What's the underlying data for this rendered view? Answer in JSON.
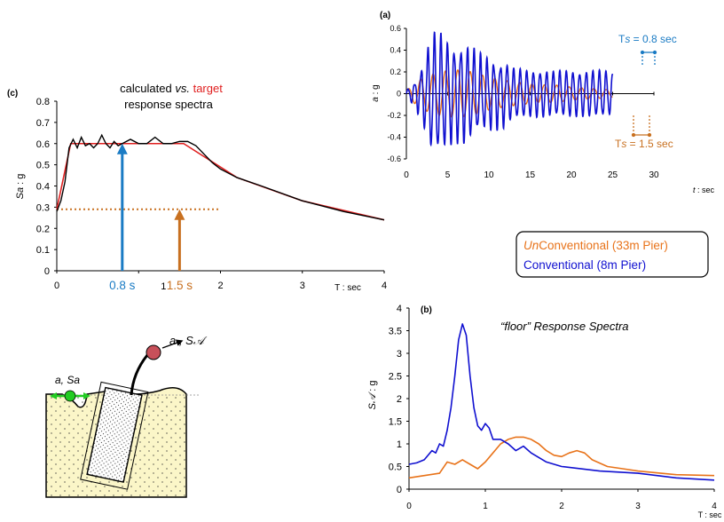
{
  "colors": {
    "conventional": "#1010d0",
    "unconventional": "#e8731a",
    "target": "#e02020",
    "calculated": "#000000",
    "arrow_08": "#1a7bc4",
    "arrow_15": "#c87020",
    "soil": "#fbf6c8",
    "mass": "#c8505a",
    "ball": "#22cc22"
  },
  "legend": {
    "unconventional_prefix": "Un",
    "unconventional_rest": "Conventional (33m Pier)",
    "conventional": "Conventional (8m Pier)"
  },
  "sketch": {
    "top_label_a": "a",
    "top_label_sa": ", S",
    "top_label_script": "ᵉ",
    "ground_label": "a, Sa",
    "top_label_full": "S𝒜"
  },
  "chart_data": [
    {
      "id": "a",
      "type": "line",
      "panel_label": "(a)",
      "xlabel_var": "t",
      "xlabel_unit": ": sec",
      "ylabel_var": "a",
      "ylabel_unit": ": g",
      "xlim": [
        0,
        30
      ],
      "ylim": [
        -0.6,
        0.6
      ],
      "xticks": [
        "0",
        "5",
        "10",
        "15",
        "20",
        "25",
        "30"
      ],
      "yticks": [
        "-0.6",
        "-0.4",
        "-0.2",
        "0",
        "0.2",
        "0.4",
        "0.6"
      ],
      "annotations": {
        "ts08_prefix": "T",
        "ts08_var": "s",
        "ts08_rest": " = 0.8 sec",
        "ts15_prefix": "T",
        "ts15_var": "s",
        "ts15_rest": " = 1.5 sec"
      },
      "series": [
        {
          "key": "conventional",
          "period": 0.8,
          "envelope_t": [
            0,
            1,
            2,
            3,
            4,
            5,
            6,
            7,
            8,
            9,
            10,
            11,
            12,
            13,
            14,
            15,
            16,
            17,
            18,
            19,
            20,
            21,
            22,
            23,
            24,
            25
          ],
          "envelope_a": [
            0.03,
            0.1,
            0.25,
            0.5,
            0.52,
            0.45,
            0.4,
            0.42,
            0.38,
            0.32,
            0.3,
            0.28,
            0.27,
            0.22,
            0.21,
            0.2,
            0.2,
            0.2,
            0.19,
            0.2,
            0.2,
            0.19,
            0.2,
            0.2,
            0.2,
            0.18
          ]
        },
        {
          "key": "unconventional",
          "period": 1.5,
          "envelope_t": [
            0,
            2,
            4,
            6,
            8,
            10,
            12,
            14,
            16,
            18,
            20,
            22,
            24,
            25
          ],
          "envelope_a": [
            0.03,
            0.15,
            0.2,
            0.22,
            0.2,
            0.15,
            0.12,
            0.1,
            0.08,
            0.08,
            0.06,
            0.05,
            0.04,
            0.03
          ]
        }
      ]
    },
    {
      "id": "c",
      "type": "line",
      "panel_label": "(c)",
      "title_a": "calculated ",
      "title_vs": "vs.",
      "title_target": "target",
      "title_b": "response spectra",
      "xlabel": "T : sec",
      "ylabel_var": "Sa",
      "ylabel_unit": ": g",
      "xlim": [
        0,
        4
      ],
      "ylim": [
        0,
        0.8
      ],
      "xticks": [
        "0",
        "1",
        "2",
        "3",
        "4"
      ],
      "yticks": [
        "0",
        "0.1",
        "0.2",
        "0.3",
        "0.4",
        "0.5",
        "0.6",
        "0.7",
        "0.8"
      ],
      "marker_labels": [
        "0.8 s",
        "1.5 s"
      ],
      "markers": [
        {
          "T": 0.8,
          "Sa": 0.6
        },
        {
          "T": 1.5,
          "Sa": 0.29
        }
      ],
      "dotted_level": 0.29,
      "target": {
        "T": [
          0,
          0.17,
          1.55,
          2.2,
          3.0,
          4.0
        ],
        "Sa": [
          0.29,
          0.6,
          0.6,
          0.44,
          0.33,
          0.24
        ]
      },
      "calculated": {
        "T": [
          0,
          0.05,
          0.1,
          0.15,
          0.2,
          0.25,
          0.3,
          0.35,
          0.4,
          0.45,
          0.5,
          0.55,
          0.6,
          0.65,
          0.7,
          0.75,
          0.8,
          0.9,
          1.0,
          1.1,
          1.2,
          1.3,
          1.4,
          1.5,
          1.6,
          1.7,
          1.8,
          1.9,
          2.0,
          2.2,
          2.5,
          3.0,
          3.5,
          4.0
        ],
        "Sa": [
          0.28,
          0.33,
          0.42,
          0.58,
          0.62,
          0.58,
          0.63,
          0.59,
          0.6,
          0.58,
          0.6,
          0.64,
          0.6,
          0.58,
          0.61,
          0.59,
          0.6,
          0.62,
          0.6,
          0.6,
          0.63,
          0.6,
          0.6,
          0.61,
          0.61,
          0.59,
          0.55,
          0.51,
          0.48,
          0.44,
          0.4,
          0.33,
          0.28,
          0.24
        ]
      }
    },
    {
      "id": "b",
      "type": "line",
      "panel_label": "(b)",
      "title": "“floor” Response Spectra",
      "xlabel": "T : sec",
      "ylabel_var": "S𝒜",
      "ylabel_unit": ": g",
      "xlim": [
        0,
        4
      ],
      "ylim": [
        0,
        4
      ],
      "xticks": [
        "0",
        "1",
        "2",
        "3",
        "4"
      ],
      "yticks": [
        "0",
        "0.5",
        "1",
        "1.5",
        "2",
        "2.5",
        "3",
        "3.5",
        "4"
      ],
      "series": [
        {
          "key": "conventional",
          "T": [
            0,
            0.1,
            0.2,
            0.3,
            0.35,
            0.4,
            0.45,
            0.5,
            0.55,
            0.6,
            0.65,
            0.7,
            0.75,
            0.8,
            0.85,
            0.9,
            0.95,
            1.0,
            1.05,
            1.1,
            1.2,
            1.3,
            1.4,
            1.5,
            1.6,
            1.8,
            2.0,
            2.5,
            3.0,
            3.5,
            4.0
          ],
          "SA": [
            0.55,
            0.58,
            0.65,
            0.85,
            0.8,
            1.0,
            0.95,
            1.3,
            1.8,
            2.5,
            3.3,
            3.65,
            3.4,
            2.5,
            1.8,
            1.4,
            1.3,
            1.45,
            1.35,
            1.1,
            1.1,
            1.0,
            0.85,
            0.95,
            0.8,
            0.6,
            0.5,
            0.4,
            0.35,
            0.25,
            0.2
          ]
        },
        {
          "key": "unconventional",
          "T": [
            0,
            0.2,
            0.4,
            0.5,
            0.6,
            0.7,
            0.8,
            0.9,
            1.0,
            1.1,
            1.2,
            1.3,
            1.4,
            1.5,
            1.6,
            1.7,
            1.8,
            1.9,
            2.0,
            2.1,
            2.2,
            2.3,
            2.4,
            2.6,
            2.8,
            3.0,
            3.5,
            4.0
          ],
          "SA": [
            0.25,
            0.3,
            0.35,
            0.6,
            0.55,
            0.65,
            0.55,
            0.45,
            0.6,
            0.8,
            1.0,
            1.1,
            1.15,
            1.15,
            1.1,
            1.0,
            0.85,
            0.75,
            0.72,
            0.8,
            0.85,
            0.8,
            0.65,
            0.5,
            0.45,
            0.4,
            0.32,
            0.3
          ]
        }
      ]
    }
  ]
}
